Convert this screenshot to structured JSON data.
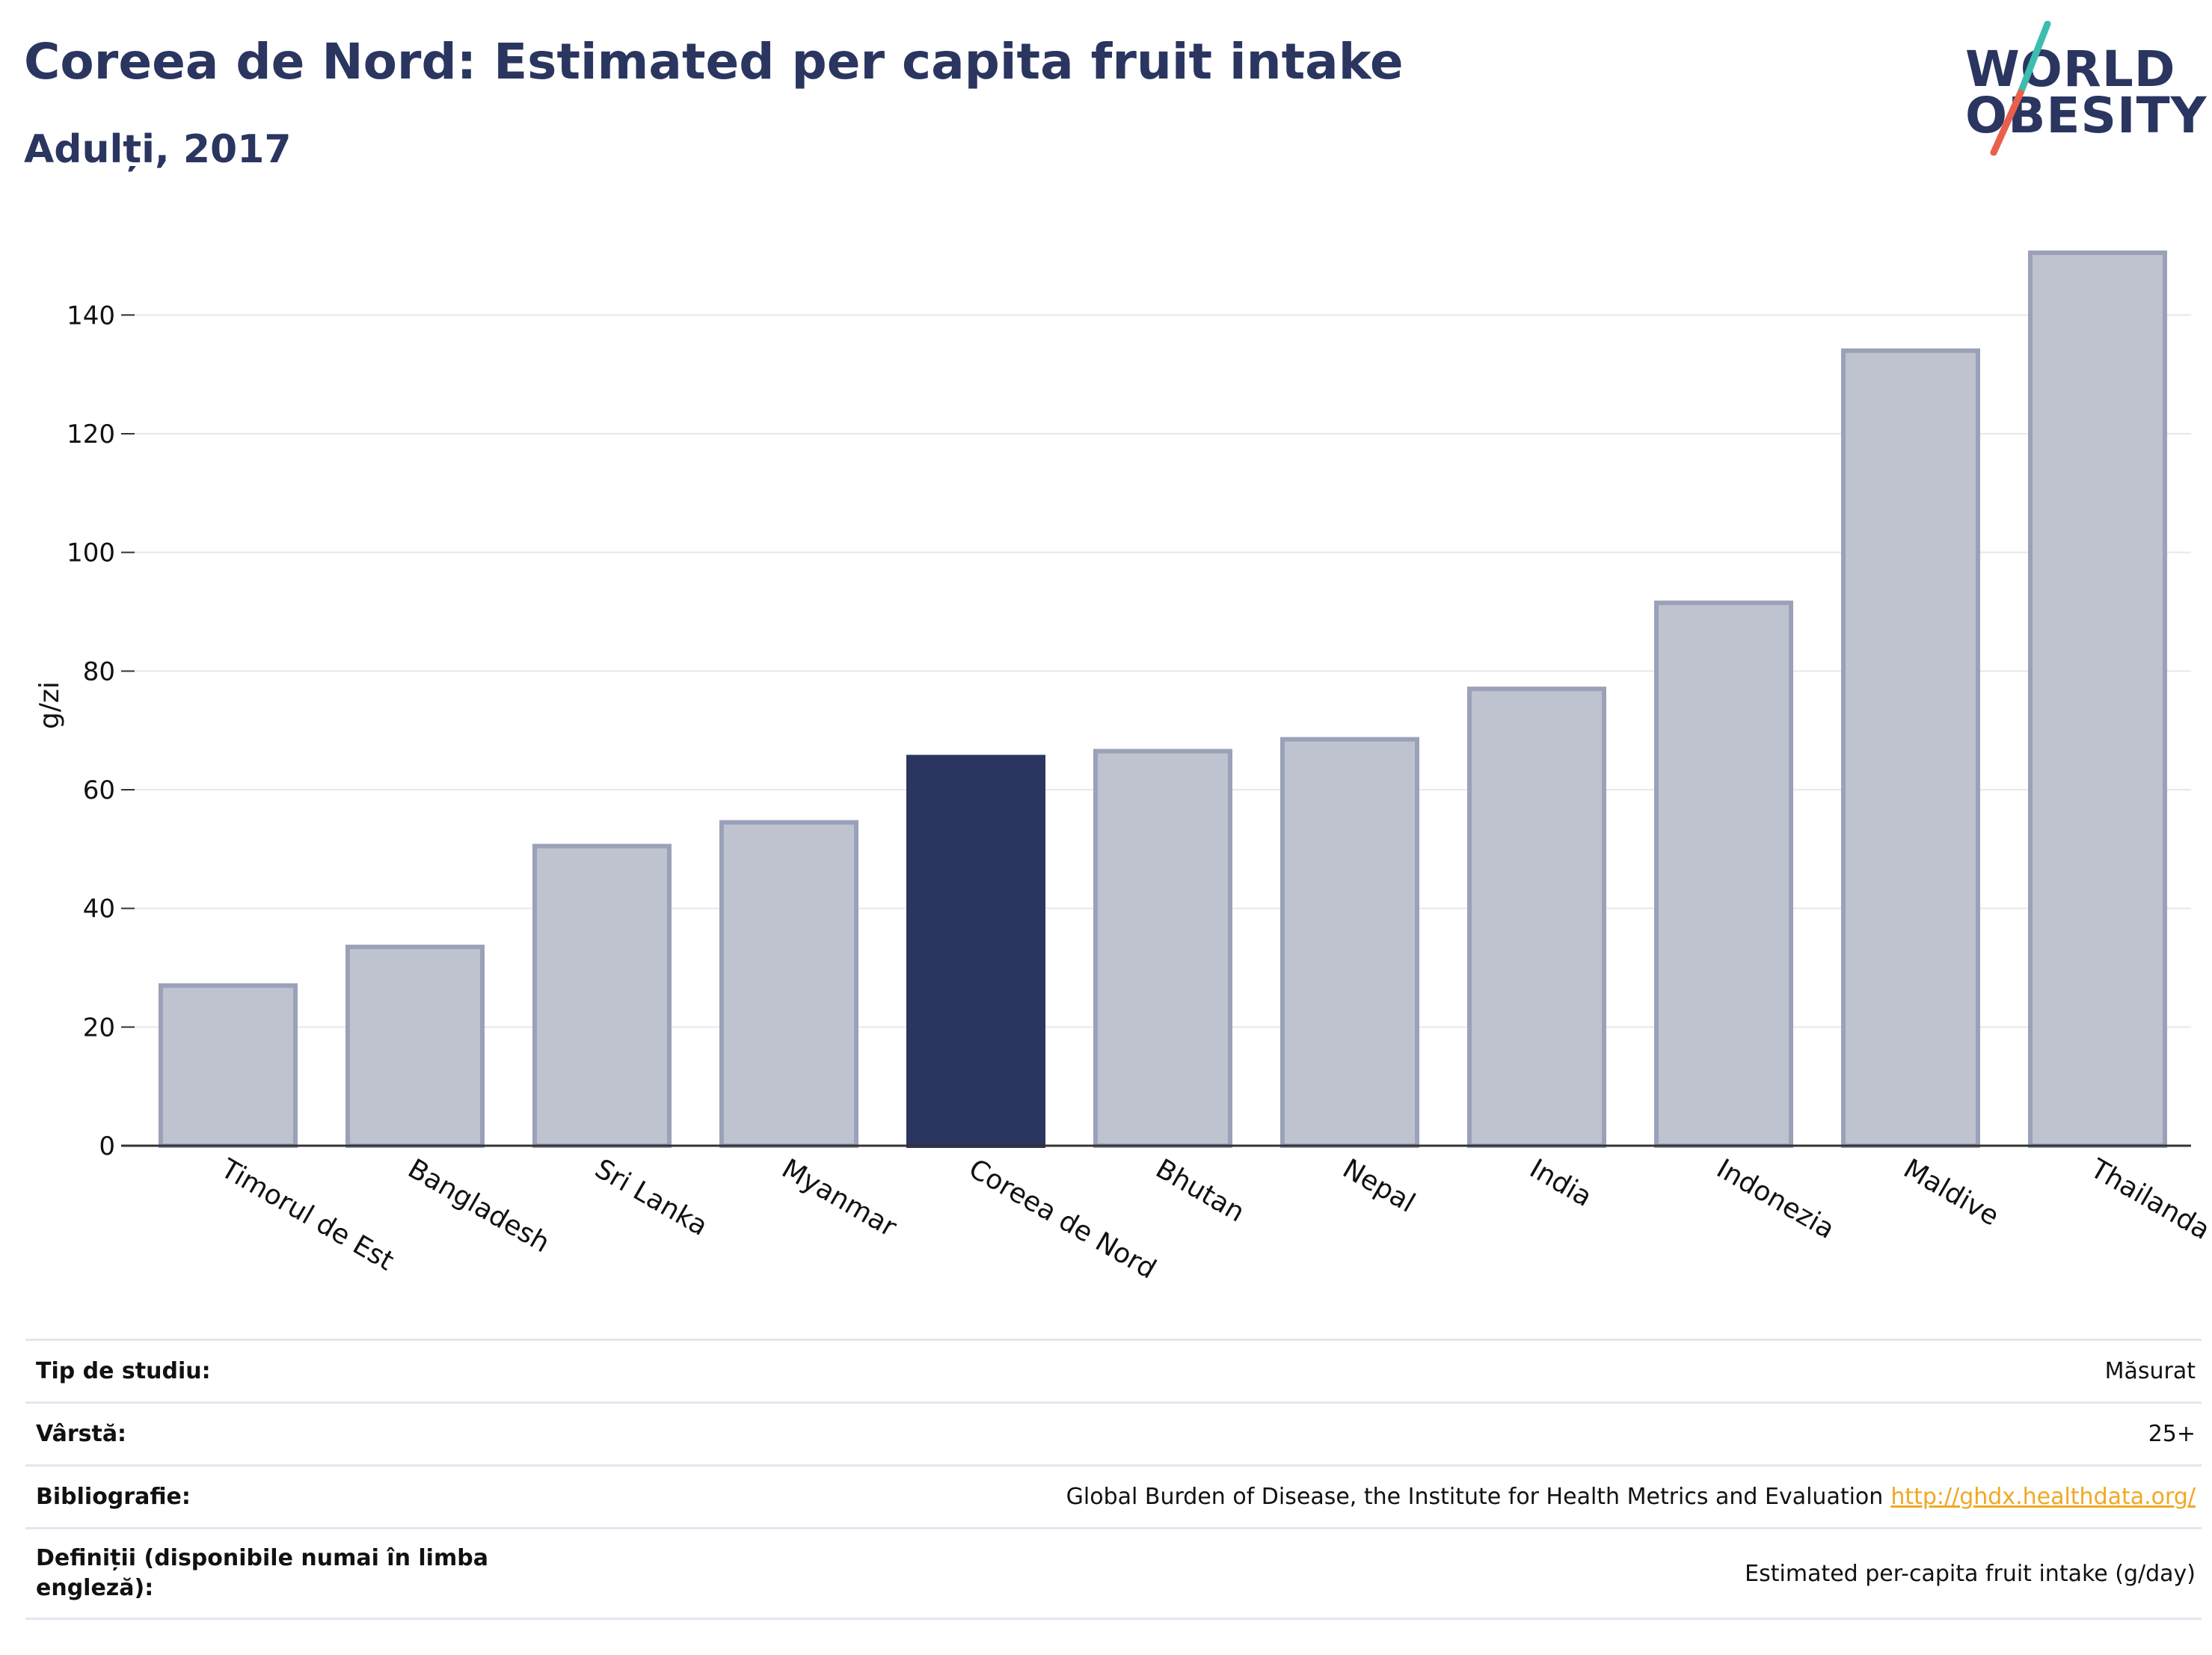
{
  "title": "Coreea de Nord: Estimated per capita fruit intake",
  "subtitle": "Adulți, 2017",
  "logo": {
    "line1": "WORLD",
    "line2": "OBESITY",
    "slash_colors": [
      "#3dbdb0",
      "#e8604c"
    ]
  },
  "colors": {
    "highlight": "#2a3560",
    "bar_fill": "#bfc3d0",
    "bar_stroke": "#9aa1b8",
    "grid": "#e6e8ee",
    "axis": "#333333"
  },
  "chart_data": {
    "type": "bar",
    "categories": [
      "Timorul de Est",
      "Bangladesh",
      "Sri Lanka",
      "Myanmar",
      "Coreea de Nord",
      "Bhutan",
      "Nepal",
      "India",
      "Indonezia",
      "Maldive",
      "Thailanda"
    ],
    "values": [
      27,
      33.5,
      50.5,
      54.5,
      65.5,
      66.5,
      68.5,
      77,
      91.5,
      134,
      150.5
    ],
    "highlight": "Coreea de Nord",
    "ylabel": "g/zi",
    "xlabel": "",
    "ylim": [
      0,
      150.5
    ],
    "yticks": [
      0,
      20,
      40,
      60,
      80,
      100,
      120,
      140
    ],
    "grid": true
  },
  "info": {
    "rows": [
      {
        "label": "Tip de studiu:",
        "value": "Măsurat",
        "link": ""
      },
      {
        "label": "Vârstă:",
        "value": "25+",
        "link": ""
      },
      {
        "label": "Bibliografie:",
        "value": "Global Burden of Disease, the Institute for Health Metrics and Evaluation",
        "link": "http://ghdx.healthdata.org/"
      },
      {
        "label": "Definiții (disponibile numai în limba engleză):",
        "value": "Estimated per-capita fruit intake (g/day)",
        "link": ""
      }
    ]
  }
}
